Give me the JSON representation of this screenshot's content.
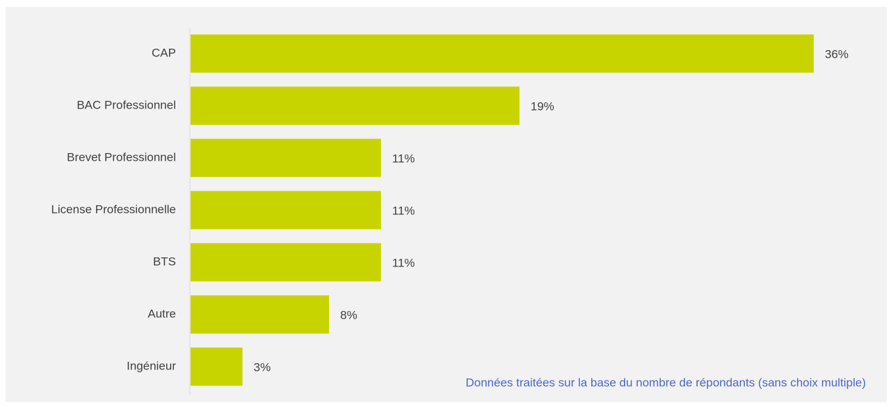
{
  "chart_data": {
    "type": "barh",
    "categories": [
      "CAP",
      "BAC Professionnel",
      "Brevet Professionnel",
      "License Professionnelle",
      "BTS",
      "Autre",
      "Ingénieur"
    ],
    "values": [
      36,
      19,
      11,
      11,
      11,
      8,
      3
    ],
    "value_labels": [
      "36%",
      "19%",
      "11%",
      "11%",
      "11%",
      "8%",
      "3%"
    ],
    "color": "#c8d400",
    "note": "Données traitées sur la base du nombre de répondants (sans choix multiple)"
  }
}
